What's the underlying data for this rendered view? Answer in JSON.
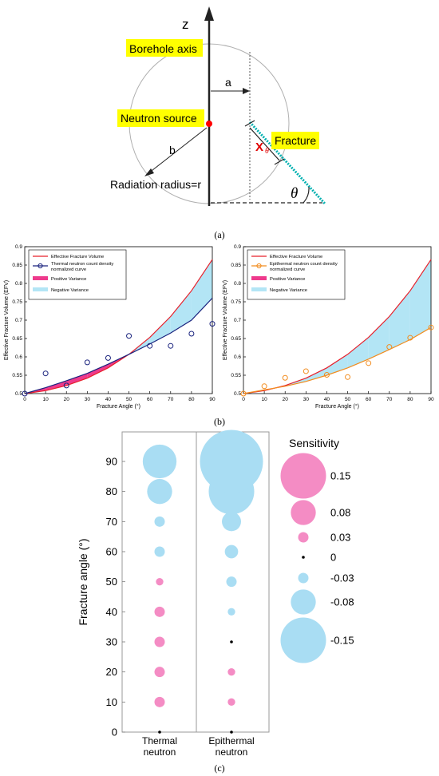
{
  "panel_a": {
    "z_label": "z",
    "borehole_label": "Borehole axis",
    "a_label": "a",
    "source_label": "Neutron source",
    "b_label": "b",
    "radius_label": "Radiation radius=r",
    "fracture_label": "Fracture",
    "x_label": "X",
    "x_sub": "θ",
    "theta_label": "θ",
    "caption": "(a)",
    "highlight_color": "#ffff00",
    "source_color": "#ff0000",
    "fracture_color": "#00b0b0"
  },
  "panel_b": {
    "caption": "(b)"
  },
  "panel_c": {
    "caption": "(c)"
  },
  "chart_data": [
    {
      "type": "line",
      "xlabel": "Fracture Angle (°)",
      "ylabel": "Effective Fracture Volume (EFV)",
      "xlim": [
        0,
        90
      ],
      "ylim": [
        0.5,
        0.9
      ],
      "xticks": [
        0,
        10,
        20,
        30,
        40,
        50,
        60,
        70,
        80,
        90
      ],
      "yticks": [
        0.5,
        0.55,
        0.6,
        0.65,
        0.7,
        0.75,
        0.8,
        0.85,
        0.9
      ],
      "legend_position": "top-left",
      "legend": {
        "efv": "Effective Fracture Volume",
        "curve_1": "Thermal neutron count density",
        "curve_2": "normalized curve",
        "positive": "Positive Variance",
        "negative": "Negative Variance"
      },
      "efv_color": "#e8202a",
      "curve_color": "#1a237e",
      "positive_color": "#ee3a8c",
      "negative_color": "#b3e5f5",
      "x": [
        0,
        10,
        20,
        30,
        40,
        50,
        60,
        70,
        80,
        90
      ],
      "efv": [
        0.5,
        0.508,
        0.522,
        0.542,
        0.57,
        0.607,
        0.653,
        0.71,
        0.78,
        0.865
      ],
      "curve": [
        0.5,
        0.516,
        0.535,
        0.555,
        0.58,
        0.607,
        0.635,
        0.665,
        0.7,
        0.76
      ],
      "points_x": [
        0,
        10,
        20,
        30,
        40,
        50,
        60,
        70,
        80,
        90
      ],
      "points_y": [
        0.5,
        0.555,
        0.522,
        0.585,
        0.597,
        0.657,
        0.63,
        0.63,
        0.663,
        0.69
      ]
    },
    {
      "type": "line",
      "xlabel": "Fracture Angle (°)",
      "ylabel": "Effective Fracture Volume (EFV)",
      "xlim": [
        0,
        90
      ],
      "ylim": [
        0.5,
        0.9
      ],
      "xticks": [
        0,
        10,
        20,
        30,
        40,
        50,
        60,
        70,
        80,
        90
      ],
      "yticks": [
        0.5,
        0.55,
        0.6,
        0.65,
        0.7,
        0.75,
        0.8,
        0.85,
        0.9
      ],
      "legend_position": "top-left",
      "legend": {
        "efv": "Effective Fracture Volume",
        "curve_1": "Epithermal neutron count density",
        "curve_2": "normalized curve",
        "positive": "Positive Variance",
        "negative": "Negative Variance"
      },
      "efv_color": "#e8202a",
      "curve_color": "#f28c1e",
      "positive_color": "#ee3a8c",
      "negative_color": "#b3e5f5",
      "x": [
        0,
        10,
        20,
        30,
        40,
        50,
        60,
        70,
        80,
        90
      ],
      "efv": [
        0.5,
        0.508,
        0.522,
        0.542,
        0.57,
        0.607,
        0.653,
        0.71,
        0.78,
        0.865
      ],
      "curve": [
        0.5,
        0.51,
        0.52,
        0.533,
        0.55,
        0.57,
        0.594,
        0.62,
        0.647,
        0.68
      ],
      "points_x": [
        0,
        10,
        20,
        30,
        40,
        50,
        60,
        70,
        80,
        90
      ],
      "points_y": [
        0.5,
        0.52,
        0.543,
        0.561,
        0.551,
        0.545,
        0.583,
        0.627,
        0.652,
        0.68
      ]
    },
    {
      "type": "scatter",
      "ylabel": "Fracture angle (°)",
      "yticks": [
        0,
        10,
        20,
        30,
        40,
        50,
        60,
        70,
        80,
        90
      ],
      "columns": [
        {
          "line1": "Thermal",
          "line2": "neutron",
          "values": [
            0,
            0.03,
            0.03,
            0.03,
            0.03,
            0.02,
            -0.03,
            -0.03,
            -0.08,
            -0.11
          ]
        },
        {
          "line1": "Epithermal",
          "line2": "neutron",
          "values": [
            0,
            0.02,
            0.02,
            0,
            -0.02,
            -0.03,
            -0.04,
            -0.06,
            -0.15,
            -0.21
          ]
        }
      ],
      "legend_title": "Sensitivity",
      "legend_values": [
        0.15,
        0.08,
        0.03,
        0,
        -0.03,
        -0.08,
        -0.15
      ],
      "legend_labels": [
        "0.15",
        "0.08",
        "0.03",
        "0",
        "-0.03",
        "-0.08",
        "-0.15"
      ],
      "positive_color": "#f48cc4",
      "negative_color": "#a9ddf3",
      "zero_color": "#000000"
    }
  ]
}
